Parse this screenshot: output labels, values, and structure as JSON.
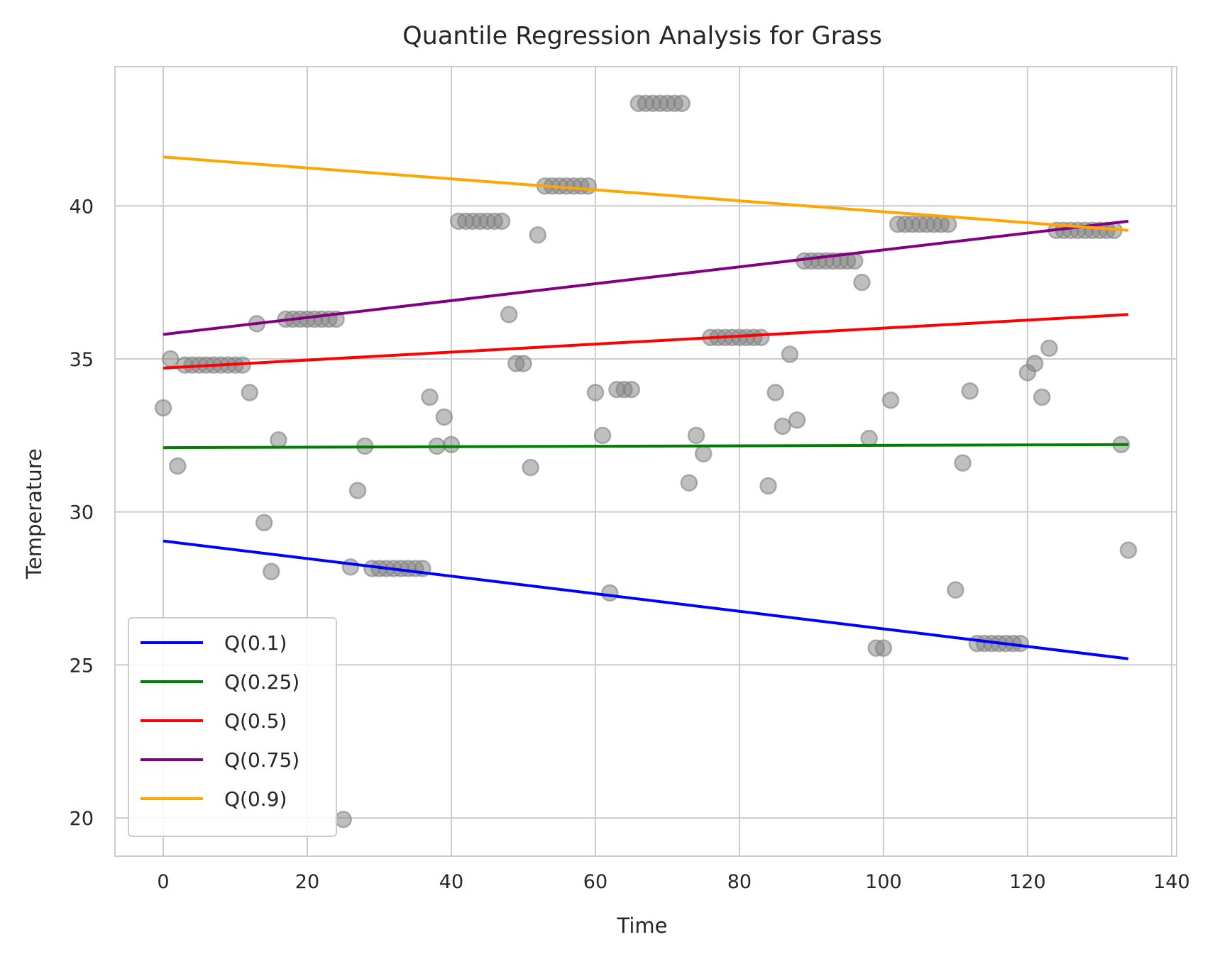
{
  "chart_data": {
    "type": "scatter",
    "title": "Quantile Regression Analysis for Grass",
    "xlabel": "Time",
    "ylabel": "Temperature",
    "xlim": [
      -6.7,
      140.7
    ],
    "ylim": [
      18.75,
      44.55
    ],
    "xticks": [
      0,
      20,
      40,
      60,
      80,
      100,
      120,
      140
    ],
    "yticks": [
      20,
      25,
      30,
      35,
      40
    ],
    "grid": true,
    "legend_position": "lower-left",
    "scatter": {
      "color": "#808080",
      "x": [
        0,
        1,
        2,
        3,
        4,
        5,
        6,
        7,
        8,
        9,
        10,
        11,
        12,
        13,
        14,
        15,
        16,
        17,
        18,
        19,
        20,
        21,
        22,
        23,
        24,
        25,
        26,
        27,
        28,
        29,
        30,
        31,
        32,
        33,
        34,
        35,
        36,
        37,
        38,
        39,
        40,
        41,
        42,
        43,
        44,
        45,
        46,
        47,
        48,
        49,
        50,
        51,
        52,
        53,
        54,
        55,
        56,
        57,
        58,
        59,
        60,
        61,
        62,
        63,
        64,
        65,
        66,
        67,
        68,
        69,
        70,
        71,
        72,
        73,
        74,
        75,
        76,
        77,
        78,
        79,
        80,
        81,
        82,
        83,
        84,
        85,
        86,
        87,
        88,
        89,
        90,
        91,
        92,
        93,
        94,
        95,
        96,
        97,
        98,
        99,
        100,
        101,
        102,
        103,
        104,
        105,
        106,
        107,
        108,
        109,
        110,
        111,
        112,
        113,
        114,
        115,
        116,
        117,
        118,
        119,
        120,
        121,
        122,
        123,
        124,
        125,
        126,
        127,
        128,
        129,
        130,
        131,
        132,
        133,
        134
      ],
      "y": [
        33.4,
        35.0,
        31.5,
        34.8,
        34.8,
        34.8,
        34.8,
        34.8,
        34.8,
        34.8,
        34.8,
        34.8,
        33.9,
        36.15,
        29.65,
        28.05,
        32.35,
        36.3,
        36.3,
        36.3,
        36.3,
        36.3,
        36.3,
        36.3,
        36.3,
        19.95,
        28.2,
        30.7,
        32.15,
        28.15,
        28.15,
        28.15,
        28.15,
        28.15,
        28.15,
        28.15,
        28.15,
        33.75,
        32.15,
        33.1,
        32.2,
        39.5,
        39.5,
        39.5,
        39.5,
        39.5,
        39.5,
        39.5,
        36.45,
        34.85,
        34.85,
        31.45,
        39.05,
        40.65,
        40.65,
        40.65,
        40.65,
        40.65,
        40.65,
        40.65,
        33.9,
        32.5,
        27.35,
        34.0,
        34.0,
        34.0,
        43.35,
        43.35,
        43.35,
        43.35,
        43.35,
        43.35,
        43.35,
        30.95,
        32.5,
        31.9,
        35.7,
        35.7,
        35.7,
        35.7,
        35.7,
        35.7,
        35.7,
        35.7,
        30.85,
        33.9,
        32.8,
        35.15,
        33.0,
        38.2,
        38.2,
        38.2,
        38.2,
        38.2,
        38.2,
        38.2,
        38.2,
        37.5,
        32.4,
        25.55,
        25.55,
        33.65,
        39.4,
        39.4,
        39.4,
        39.4,
        39.4,
        39.4,
        39.4,
        39.4,
        27.45,
        31.6,
        33.95,
        25.7,
        25.7,
        25.7,
        25.7,
        25.7,
        25.7,
        25.7,
        34.55,
        34.85,
        33.75,
        35.35,
        39.2,
        39.2,
        39.2,
        39.2,
        39.2,
        39.2,
        39.2,
        39.2,
        39.2,
        32.2,
        28.75
      ]
    },
    "series": [
      {
        "name": "Q(0.1)",
        "color": "#0000ff",
        "x": [
          0,
          134
        ],
        "y": [
          29.05,
          25.2
        ]
      },
      {
        "name": "Q(0.25)",
        "color": "#008000",
        "x": [
          0,
          134
        ],
        "y": [
          32.1,
          32.2
        ]
      },
      {
        "name": "Q(0.5)",
        "color": "#ff0000",
        "x": [
          0,
          134
        ],
        "y": [
          34.7,
          36.45
        ]
      },
      {
        "name": "Q(0.75)",
        "color": "#800080",
        "x": [
          0,
          134
        ],
        "y": [
          35.8,
          39.5
        ]
      },
      {
        "name": "Q(0.9)",
        "color": "#ffa500",
        "x": [
          0,
          134
        ],
        "y": [
          41.6,
          39.2
        ]
      }
    ]
  }
}
